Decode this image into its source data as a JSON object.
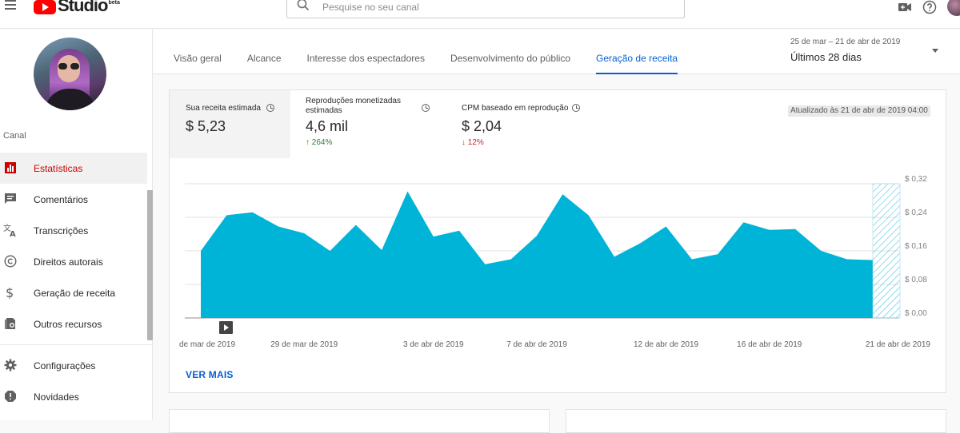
{
  "app": {
    "logo_text": "Studio",
    "logo_badge": "beta"
  },
  "search": {
    "placeholder": "Pesquise no seu canal"
  },
  "sidebar": {
    "section_label": "Canal",
    "items": [
      {
        "label": "Estatísticas",
        "icon": "bar-chart-icon",
        "active": true
      },
      {
        "label": "Comentários",
        "icon": "comment-icon"
      },
      {
        "label": "Transcrições",
        "icon": "translate-icon"
      },
      {
        "label": "Direitos autorais",
        "icon": "copyright-icon"
      },
      {
        "label": "Geração de receita",
        "icon": "dollar-icon"
      },
      {
        "label": "Outros recursos",
        "icon": "library-icon"
      },
      {
        "label": "Configurações",
        "icon": "gear-icon"
      },
      {
        "label": "Novidades",
        "icon": "alert-icon"
      }
    ]
  },
  "tabs": [
    {
      "label": "Visão geral"
    },
    {
      "label": "Alcance"
    },
    {
      "label": "Interesse dos espectadores"
    },
    {
      "label": "Desenvolvimento do público"
    },
    {
      "label": "Geração de receita",
      "active": true
    }
  ],
  "date_picker": {
    "range": "25 de mar – 21 de abr de 2019",
    "period": "Últimos 28 dias"
  },
  "metrics": [
    {
      "label": "Sua receita estimada",
      "value": "$ 5,23",
      "change": ""
    },
    {
      "label": "Reproduções monetizadas estimadas",
      "value": "4,6 mil",
      "change": "264%",
      "direction": "up"
    },
    {
      "label": "CPM baseado em reprodução",
      "value": "$ 2,04",
      "change": "12%",
      "direction": "down"
    }
  ],
  "updated_label": "Atualizado às 21 de abr de 2019 04:00",
  "ver_mais": "VER MAIS",
  "colors": {
    "accent": "#065fd4",
    "active_nav": "#cc0000",
    "area_fill": "#00b4d8"
  },
  "chart_data": {
    "type": "area",
    "yticks": [
      "$ 0,32",
      "$ 0,24",
      "$ 0,16",
      "$ 0,08",
      "$ 0,00"
    ],
    "ylim": [
      0,
      0.32
    ],
    "xtick_labels": [
      {
        "label": "de mar de 2019",
        "index": 1
      },
      {
        "label": "29 de mar de 2019",
        "index": 5
      },
      {
        "label": "3 de abr de 2019",
        "index": 10
      },
      {
        "label": "7 de abr de 2019",
        "index": 14
      },
      {
        "label": "12 de abr de 2019",
        "index": 19
      },
      {
        "label": "16 de abr de 2019",
        "index": 23
      },
      {
        "label": "21 de abr de 2019",
        "index": 28
      }
    ],
    "values": [
      0.16,
      0.245,
      0.252,
      0.218,
      0.202,
      0.16,
      0.222,
      0.162,
      0.302,
      0.194,
      0.208,
      0.128,
      0.14,
      0.196,
      0.295,
      0.245,
      0.146,
      0.178,
      0.218,
      0.14,
      0.152,
      0.228,
      0.21,
      0.212,
      0.16,
      0.14,
      0.138
    ],
    "partial_last": true,
    "grid": true
  }
}
